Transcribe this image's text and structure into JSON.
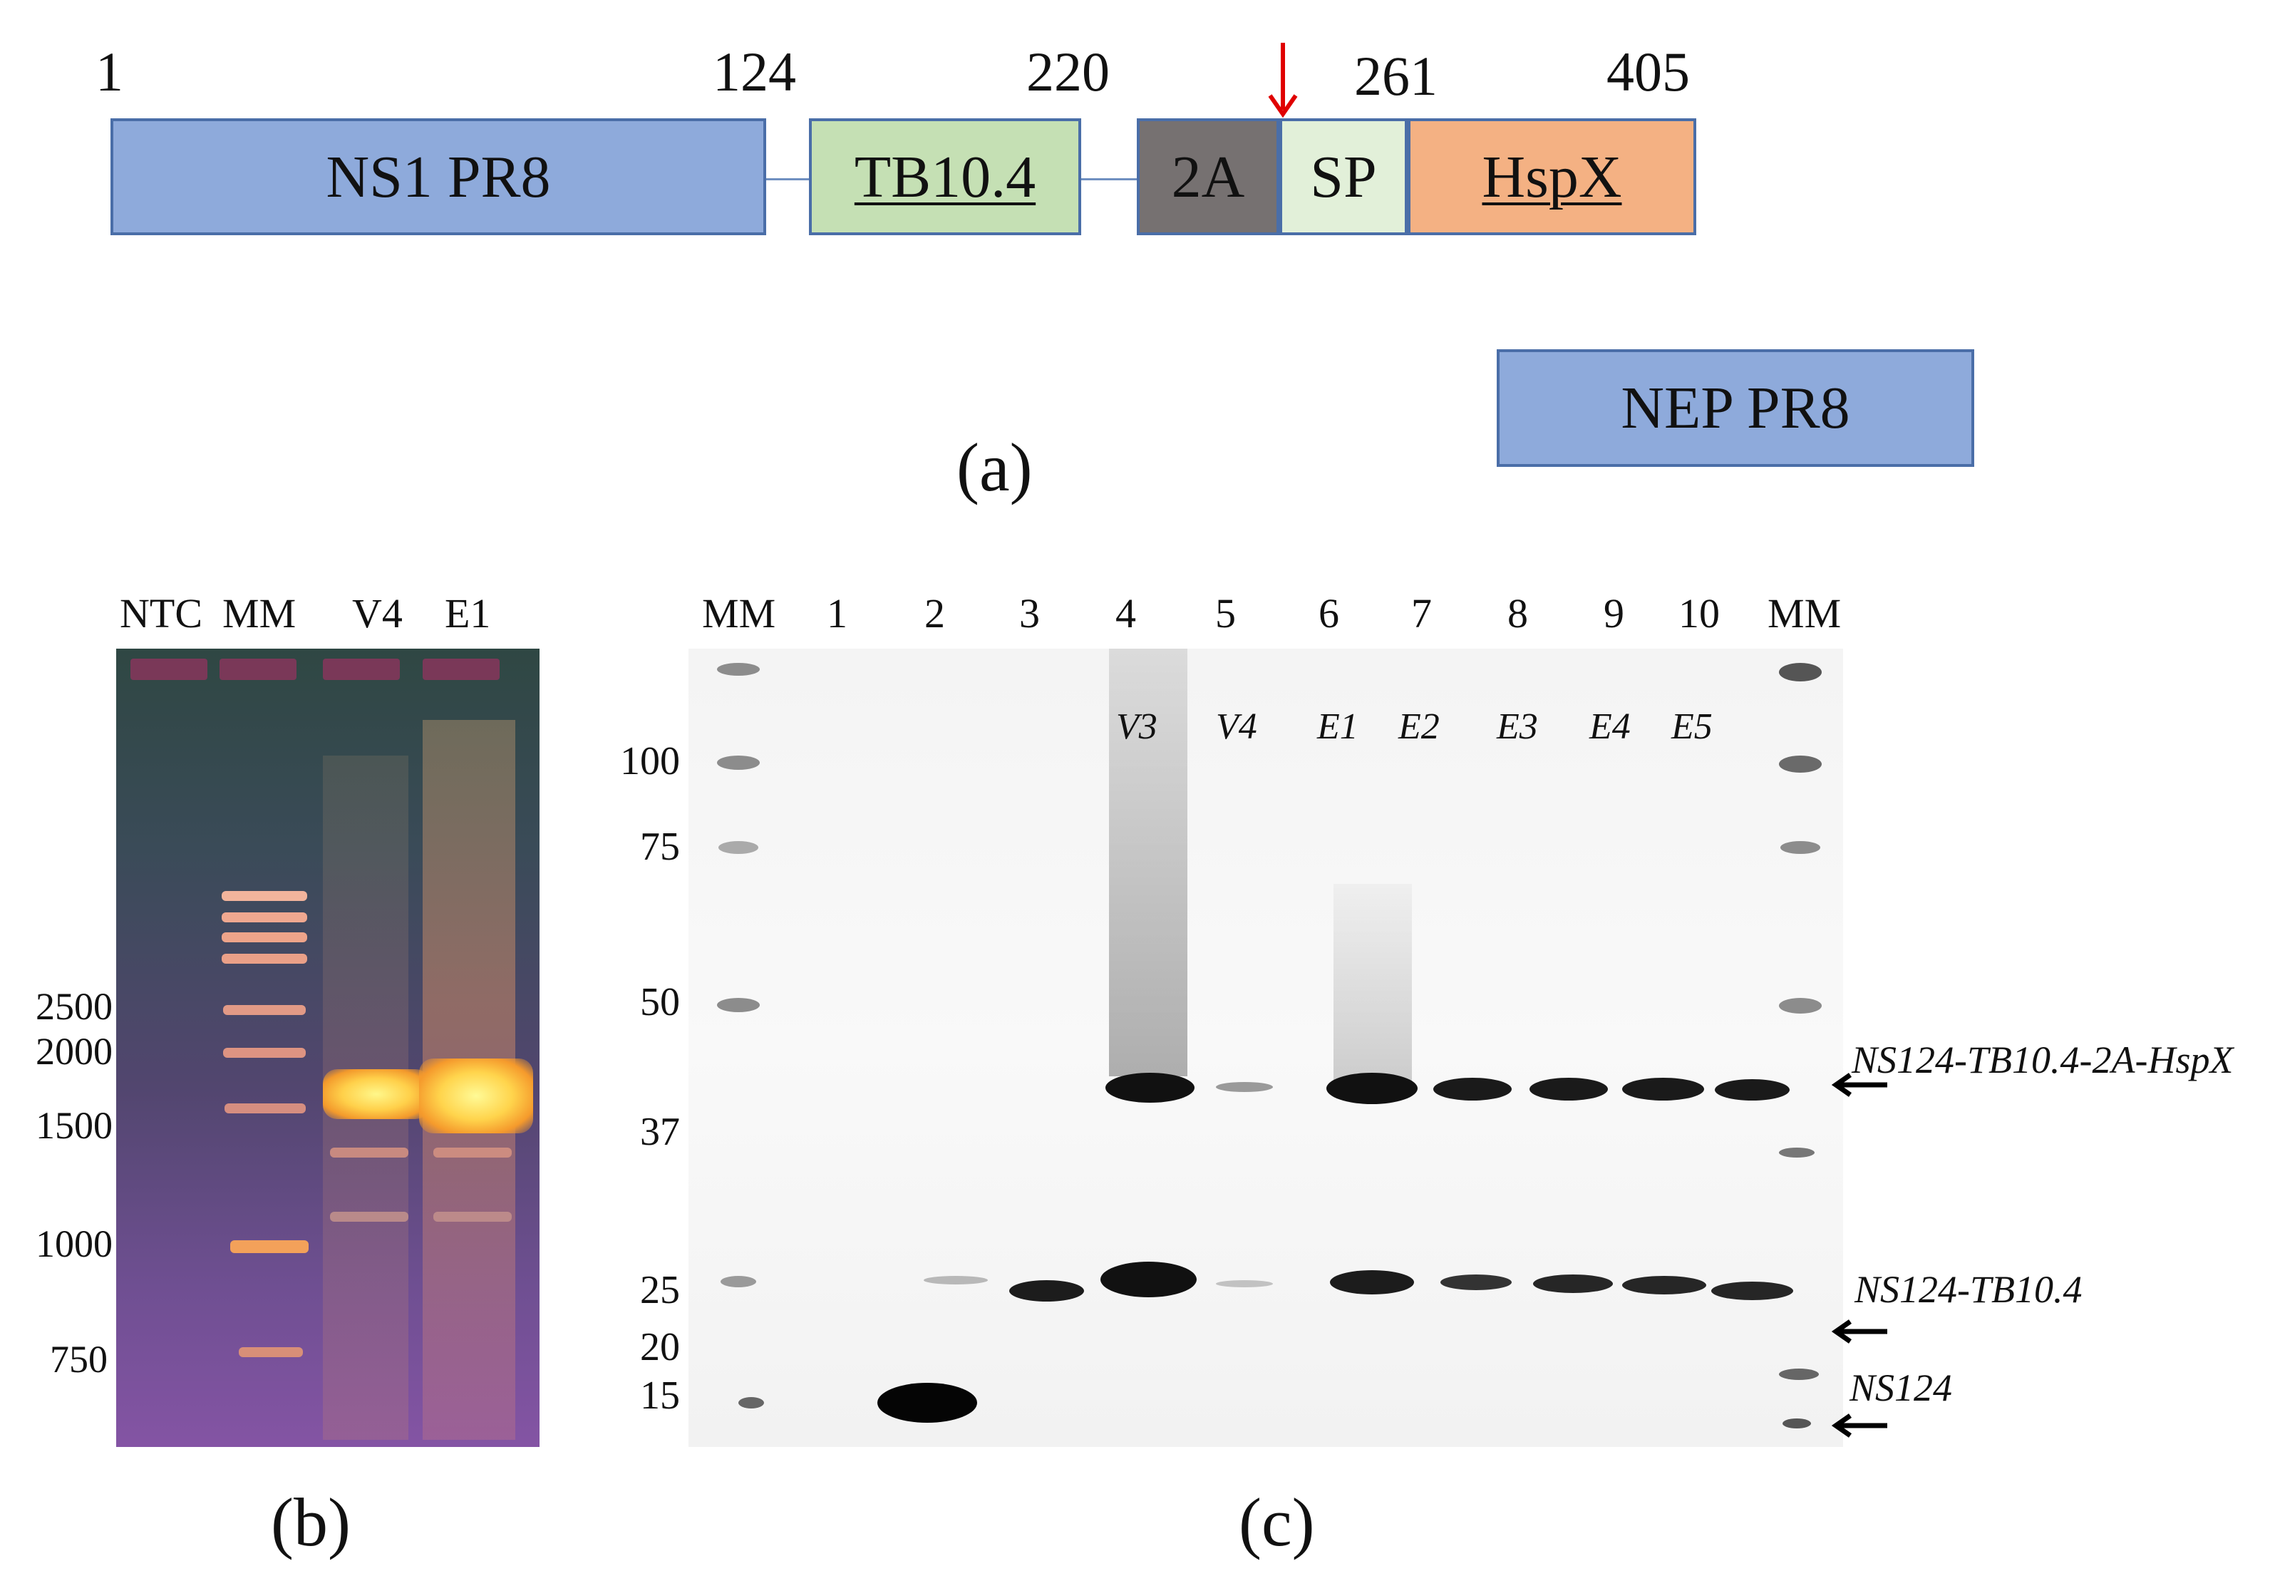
{
  "panel_a": {
    "positions": [
      "1",
      "124",
      "220",
      "261",
      "405"
    ],
    "segments": [
      {
        "label": "NS1 PR8",
        "fill": "#8eaadb",
        "underline": false
      },
      {
        "label": "TB10.4",
        "fill": "#c5e0b4",
        "underline": true
      },
      {
        "label": "2A",
        "fill": "#767171",
        "underline": false
      },
      {
        "label": "SP",
        "fill": "#e2f0d9",
        "underline": false
      },
      {
        "label": "HspX",
        "fill": "#f4b183",
        "underline": true
      }
    ],
    "nep_label": "NEP PR8",
    "arrow_color": "#e00000",
    "caption": "(a)"
  },
  "panel_b": {
    "lanes": [
      "NTC",
      "MM",
      "V4",
      "E1"
    ],
    "sizes": [
      "2500",
      "2000",
      "1500",
      "1000",
      "750"
    ],
    "caption": "(b)"
  },
  "panel_c": {
    "lanes": [
      "MM",
      "1",
      "2",
      "3",
      "4",
      "5",
      "6",
      "7",
      "8",
      "9",
      "10",
      "MM"
    ],
    "samples": [
      "V3",
      "V4",
      "E1",
      "E2",
      "E3",
      "E4",
      "E5"
    ],
    "markers_kda": [
      "100",
      "75",
      "50",
      "37",
      "25",
      "20",
      "15"
    ],
    "annotations": [
      "NS124-TB10.4-2A-HspX",
      "NS124-TB10.4",
      "NS124"
    ],
    "caption": "(c)"
  }
}
